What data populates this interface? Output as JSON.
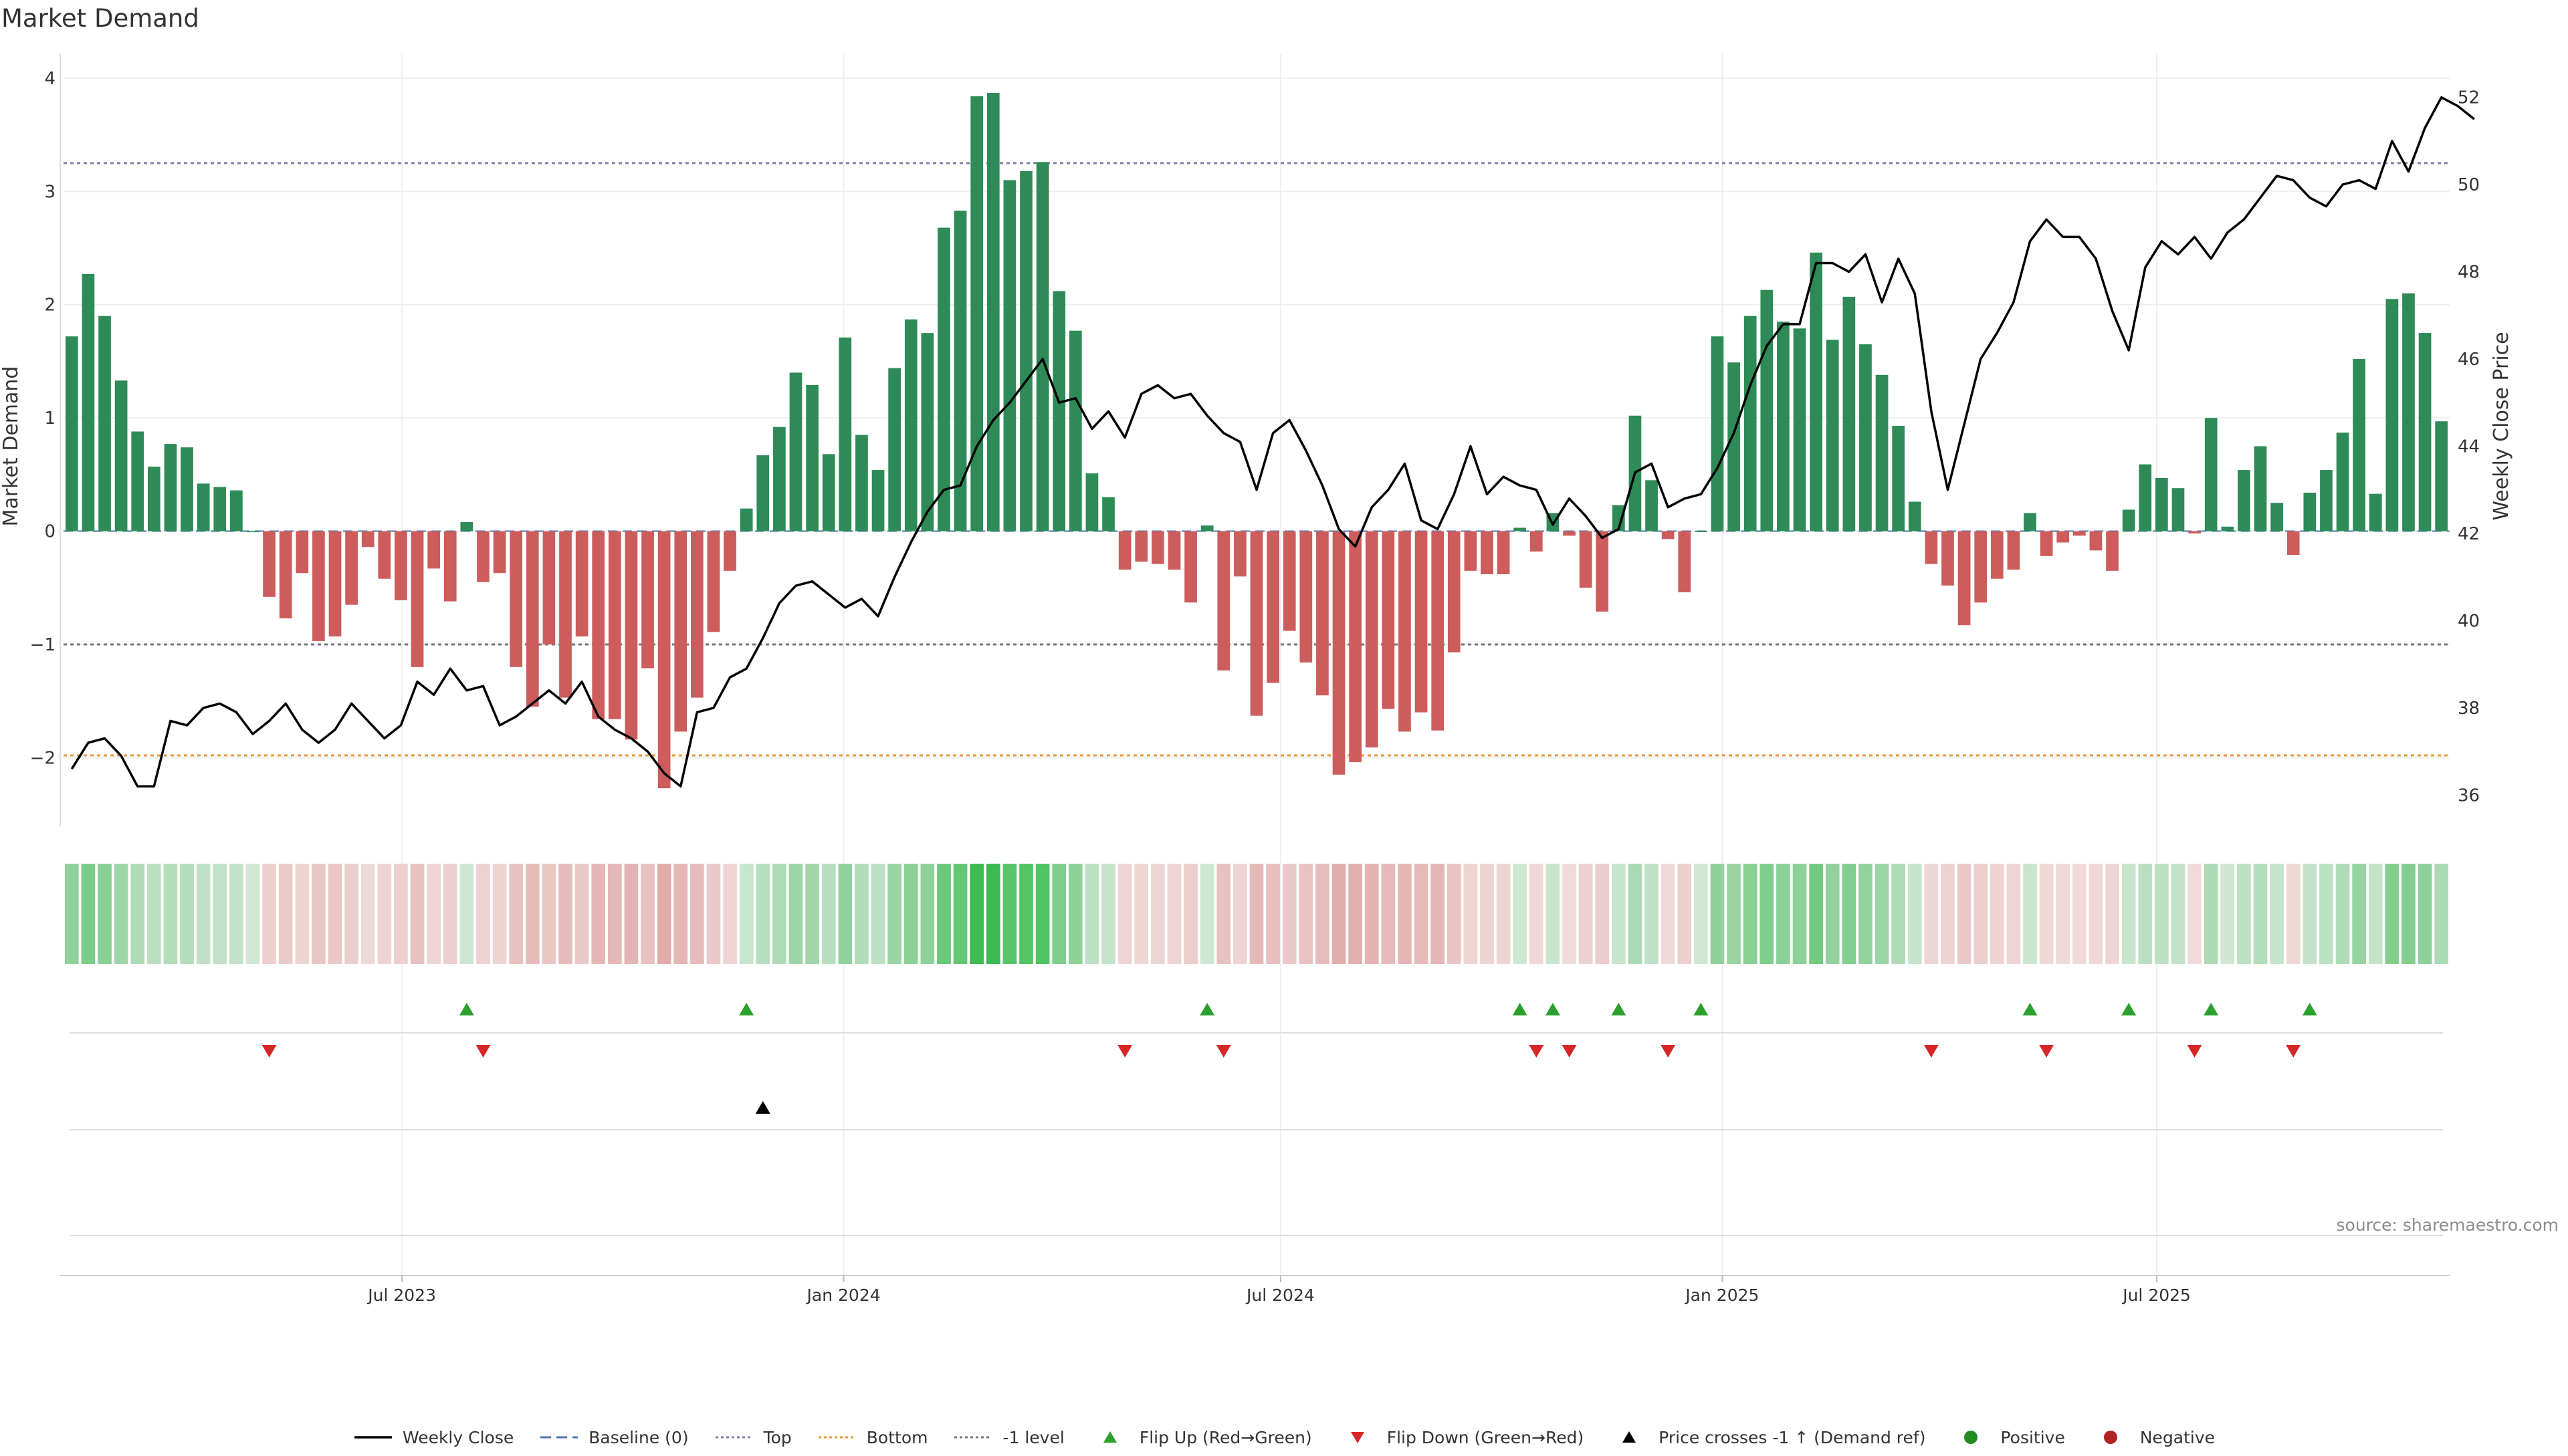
{
  "chart_data": {
    "type": "bar",
    "title": "Market Demand",
    "ylabel": "Market Demand",
    "y2label": "Weekly Close Price",
    "ylim": [
      -2.6,
      4.1
    ],
    "y2lim": [
      35.3,
      52.7
    ],
    "yticks": [
      -2,
      -1,
      0,
      1,
      2,
      3,
      4
    ],
    "y2ticks": [
      36,
      38,
      40,
      42,
      44,
      46,
      48,
      50,
      52
    ],
    "x_axis": {
      "start": "2023-02-10",
      "end": "2025-10-31",
      "ticks": [
        {
          "date": "2023-07-01",
          "label": "Jul 2023"
        },
        {
          "date": "2024-01-01",
          "label": "Jan 2024"
        },
        {
          "date": "2024-07-01",
          "label": "Jul 2024"
        },
        {
          "date": "2025-01-01",
          "label": "Jan 2025"
        },
        {
          "date": "2025-07-01",
          "label": "Jul 2025"
        }
      ]
    },
    "reference_lines": [
      {
        "name": "Top",
        "value": 3.25,
        "color": "#7a7fa8",
        "dash": "dotted"
      },
      {
        "name": "-1 level",
        "value": -1,
        "color": "#777777",
        "dash": "dotted"
      },
      {
        "name": "Bottom",
        "value": -1.98,
        "color": "#e69a3c",
        "dash": "dotted"
      },
      {
        "name": "Baseline (0)",
        "value": 0,
        "color": "#4a78b0",
        "dash": "dashed"
      }
    ],
    "colors": {
      "positive": "#2e8b57",
      "negative": "#cd5c5c",
      "price": "#000000",
      "flip_up": "#2ca02c",
      "flip_down": "#d62728",
      "cross": "#000000"
    },
    "series": [
      {
        "name": "Market Demand",
        "values": [
          1.72,
          2.27,
          1.9,
          1.33,
          0.88,
          0.57,
          0.77,
          0.74,
          0.42,
          0.39,
          0.36,
          0.0,
          -0.58,
          -0.77,
          -0.37,
          -0.97,
          -0.93,
          -0.65,
          -0.14,
          -0.42,
          -0.61,
          -1.2,
          -0.33,
          -0.62,
          0.08,
          -0.45,
          -0.37,
          -1.2,
          -1.55,
          -1.0,
          -1.47,
          -0.93,
          -1.66,
          -1.66,
          -1.84,
          -1.21,
          -2.27,
          -1.77,
          -1.47,
          -0.89,
          -0.35,
          0.2,
          0.67,
          0.92,
          1.4,
          1.29,
          0.68,
          1.71,
          0.85,
          0.54,
          1.44,
          1.87,
          1.75,
          2.68,
          2.83,
          3.84,
          3.87,
          3.1,
          3.18,
          3.26,
          2.12,
          1.77,
          0.51,
          0.3,
          -0.34,
          -0.27,
          -0.29,
          -0.34,
          -0.63,
          0.05,
          -1.23,
          -0.4,
          -1.63,
          -1.34,
          -0.88,
          -1.16,
          -1.45,
          -2.15,
          -2.04,
          -1.91,
          -1.57,
          -1.77,
          -1.6,
          -1.76,
          -1.07,
          -0.35,
          -0.38,
          -0.38,
          0.03,
          -0.18,
          0.16,
          -0.04,
          -0.5,
          -0.71,
          0.23,
          1.02,
          0.45,
          -0.07,
          -0.54,
          0.0,
          1.72,
          1.49,
          1.9,
          2.13,
          1.85,
          1.79,
          2.46,
          1.69,
          2.07,
          1.65,
          1.38,
          0.93,
          0.26,
          -0.29,
          -0.48,
          -0.83,
          -0.63,
          -0.42,
          -0.34,
          0.16,
          -0.22,
          -0.1,
          -0.04,
          -0.17,
          -0.35,
          0.19,
          0.59,
          0.47,
          0.38,
          -0.02,
          1.0,
          0.04,
          0.54,
          0.75,
          0.25,
          -0.21,
          0.34,
          0.54,
          0.87,
          1.52,
          0.33,
          2.05,
          2.1,
          1.75,
          0.97
        ]
      },
      {
        "name": "Weekly Close",
        "values": [
          36.6,
          37.2,
          37.3,
          36.9,
          36.2,
          36.2,
          37.7,
          37.6,
          38.0,
          38.1,
          37.9,
          37.4,
          37.7,
          38.1,
          37.5,
          37.2,
          37.5,
          38.1,
          37.7,
          37.3,
          37.6,
          38.6,
          38.3,
          38.9,
          38.4,
          38.5,
          37.6,
          37.8,
          38.1,
          38.4,
          38.1,
          38.6,
          37.8,
          37.5,
          37.3,
          37.0,
          36.5,
          36.2,
          37.9,
          38.0,
          38.7,
          38.9,
          39.6,
          40.4,
          40.8,
          40.9,
          40.6,
          40.3,
          40.5,
          40.1,
          41.0,
          41.8,
          42.5,
          43.0,
          43.1,
          44.0,
          44.6,
          45.0,
          45.5,
          46.0,
          45.0,
          45.1,
          44.4,
          44.8,
          44.2,
          45.2,
          45.4,
          45.1,
          45.2,
          44.7,
          44.3,
          44.1,
          43.0,
          44.3,
          44.6,
          43.9,
          43.1,
          42.1,
          41.7,
          42.6,
          43.0,
          43.6,
          42.3,
          42.1,
          42.9,
          44.0,
          42.9,
          43.3,
          43.1,
          43.0,
          42.2,
          42.8,
          42.4,
          41.9,
          42.1,
          43.4,
          43.6,
          42.6,
          42.8,
          42.9,
          43.5,
          44.3,
          45.4,
          46.3,
          46.8,
          46.8,
          48.2,
          48.2,
          48.0,
          48.4,
          47.3,
          48.3,
          47.5,
          44.8,
          43.0,
          44.5,
          46.0,
          46.6,
          47.3,
          48.7,
          49.2,
          48.8,
          48.8,
          48.3,
          47.1,
          46.2,
          48.1,
          48.7,
          48.4,
          48.8,
          48.3,
          48.9,
          49.2,
          49.7,
          50.2,
          50.1,
          49.7,
          49.5,
          50.0,
          50.1,
          49.9,
          51.0,
          50.3,
          51.3,
          52.0,
          51.8,
          51.5
        ]
      }
    ],
    "demand_ref_cross_index": 42,
    "legend": [
      {
        "key": "price",
        "label": "Weekly Close"
      },
      {
        "key": "baseline",
        "label": "Baseline (0)"
      },
      {
        "key": "top",
        "label": "Top"
      },
      {
        "key": "bottom",
        "label": "Bottom"
      },
      {
        "key": "minus1",
        "label": "-1 level"
      },
      {
        "key": "flip_up",
        "label": "Flip Up (Red→Green)"
      },
      {
        "key": "flip_down",
        "label": "Flip Down (Green→Red)"
      },
      {
        "key": "cross",
        "label": "Price crosses -1 ↑ (Demand ref)"
      },
      {
        "key": "positive",
        "label": "Positive"
      },
      {
        "key": "negative",
        "label": "Negative"
      }
    ],
    "legend_placement": "bottom-center"
  },
  "source_note": "source: sharemaestro.com"
}
